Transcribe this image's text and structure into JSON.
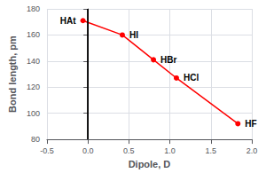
{
  "chart_data": {
    "type": "line",
    "marker": "circle",
    "x": [
      -0.06,
      0.42,
      0.8,
      1.08,
      1.83
    ],
    "values": [
      171,
      160,
      141,
      127,
      92
    ],
    "labels": [
      "HAt",
      "HI",
      "HBr",
      "HCl",
      "HF"
    ],
    "color": "#FF0000",
    "xlabel": "Dipole, D",
    "ylabel": "Bond length, pm",
    "xlim": [
      -0.5,
      2.0
    ],
    "ylim": [
      80,
      180
    ],
    "xticks": [
      -0.5,
      {
        "value": 0.0,
        "label": "0.0"
      },
      0.5,
      {
        "value": 1.0,
        "label": "1.0"
      },
      1.5,
      {
        "value": 2.0,
        "label": "2.0"
      }
    ],
    "yticks": [
      80,
      100,
      120,
      140,
      160,
      180
    ],
    "vline": {
      "x": 0.0,
      "color": "#000000"
    },
    "grid": true
  }
}
